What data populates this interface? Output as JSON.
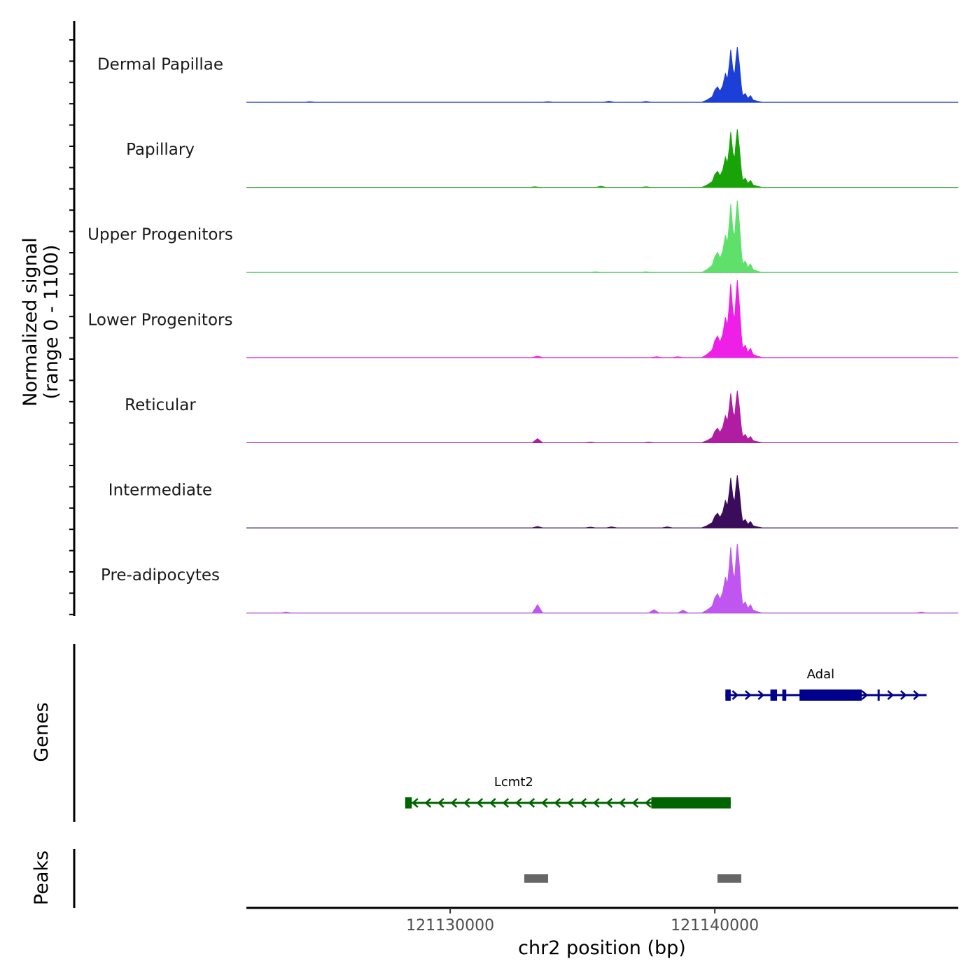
{
  "chart_data": {
    "type": "area",
    "title": "",
    "ylabel_line1": "Normalized signal",
    "ylabel_line2": "(range 0 - 1100)",
    "ylim": [
      0,
      1100
    ],
    "xlabel": "chr2 position (bp)",
    "xlim": [
      121122300,
      121149200
    ],
    "xticks": [
      121130000,
      121140000
    ],
    "xtick_labels": [
      "121130000",
      "121140000"
    ],
    "tracks": [
      {
        "name": "Dermal Papillae",
        "color": "#1c3fd8",
        "peak_max": 1000,
        "minor_bumps": [
          [
            121133700,
            0.012
          ],
          [
            121136000,
            0.02
          ],
          [
            121137400,
            0.015
          ],
          [
            121124700,
            0.01
          ]
        ]
      },
      {
        "name": "Papillary",
        "color": "#18a408",
        "peak_max": 1050,
        "minor_bumps": [
          [
            121133200,
            0.012
          ],
          [
            121135700,
            0.02
          ],
          [
            121137400,
            0.012
          ]
        ]
      },
      {
        "name": "Upper Progenitors",
        "color": "#5ee06a",
        "peak_max": 1300,
        "minor_bumps": [
          [
            121135500,
            0.012
          ],
          [
            121137400,
            0.012
          ]
        ]
      },
      {
        "name": "Lower Progenitors",
        "color": "#ee1fe6",
        "peak_max": 1400,
        "minor_bumps": [
          [
            121133300,
            0.02
          ],
          [
            121137800,
            0.012
          ],
          [
            121138600,
            0.012
          ]
        ]
      },
      {
        "name": "Reticular",
        "color": "#b01ca2",
        "peak_max": 940,
        "minor_bumps": [
          [
            121133300,
            0.08
          ],
          [
            121135300,
            0.012
          ],
          [
            121137500,
            0.012
          ]
        ]
      },
      {
        "name": "Intermediate",
        "color": "#3b0c5b",
        "peak_max": 950,
        "minor_bumps": [
          [
            121133300,
            0.025
          ],
          [
            121135300,
            0.015
          ],
          [
            121136100,
            0.02
          ],
          [
            121138200,
            0.02
          ]
        ]
      },
      {
        "name": "Pre-adipocytes",
        "color": "#c056f0",
        "peak_max": 1250,
        "minor_bumps": [
          [
            121133300,
            0.12
          ],
          [
            121137700,
            0.05
          ],
          [
            121138800,
            0.04
          ],
          [
            121123800,
            0.015
          ],
          [
            121147800,
            0.015
          ]
        ]
      }
    ],
    "genes_label": "Genes",
    "genes": [
      {
        "name": "Adal",
        "color": "#00008b",
        "start": 121140400,
        "end": 121148000,
        "strand": "+",
        "exons": [
          [
            121140400,
            121140600
          ],
          [
            121142100,
            121142350
          ],
          [
            121142550,
            121142700
          ],
          [
            121143200,
            121145550
          ],
          [
            121146150,
            121146200
          ]
        ]
      },
      {
        "name": "Lcmt2",
        "color": "#006400",
        "start": 121128300,
        "end": 121140600,
        "strand": "-",
        "exons": [
          [
            121128300,
            121128550
          ],
          [
            121137600,
            121140600
          ]
        ]
      }
    ],
    "peaks_label": "Peaks",
    "peaks": [
      {
        "start": 121132800,
        "end": 121133700
      },
      {
        "start": 121140100,
        "end": 121141000
      }
    ],
    "peaks_color": "#666666"
  }
}
